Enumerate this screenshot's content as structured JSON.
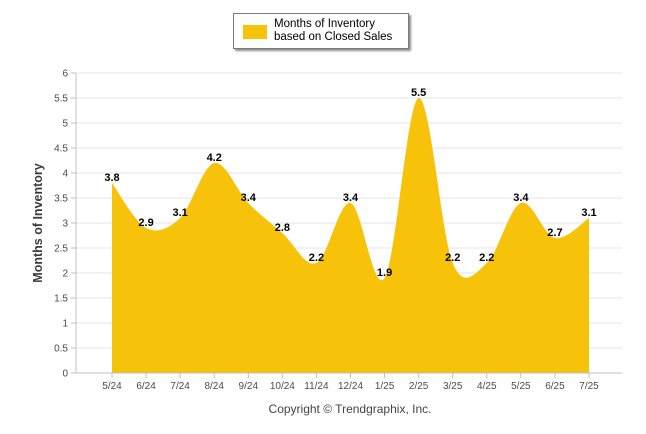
{
  "legend": {
    "label": "Months of Inventory based on Closed Sales"
  },
  "footer": {
    "copyright": "Copyright © Trendgraphix, Inc."
  },
  "colors": {
    "series_fill": "#F7C20A",
    "grid": "#e6e6e6",
    "axis_text": "#4a4a4a"
  },
  "chart_data": {
    "type": "area",
    "title": "",
    "xlabel": "",
    "ylabel": "Months of Inventory",
    "ylim": [
      0,
      6
    ],
    "yticks": [
      "0",
      "0.5",
      "1",
      "1.5",
      "2",
      "2.5",
      "3",
      "3.5",
      "4",
      "4.5",
      "5",
      "5.5",
      "6"
    ],
    "categories": [
      "5/24",
      "6/24",
      "7/24",
      "8/24",
      "9/24",
      "10/24",
      "11/24",
      "12/24",
      "1/25",
      "2/25",
      "3/25",
      "4/25",
      "5/25",
      "6/25",
      "7/25"
    ],
    "series": [
      {
        "name": "Months of Inventory based on Closed Sales",
        "values": [
          3.8,
          2.9,
          3.1,
          4.2,
          3.4,
          2.8,
          2.2,
          3.4,
          1.9,
          5.5,
          2.2,
          2.2,
          3.4,
          2.7,
          3.1
        ],
        "data_labels": [
          "3.8",
          "2.9",
          "3.1",
          "4.2",
          "3.4",
          "2.8",
          "2.2",
          "3.4",
          "1.9",
          "5.5",
          "2.2",
          "2.2",
          "3.4",
          "2.7",
          "3.1"
        ]
      }
    ],
    "grid": true,
    "legend_position": "top-center"
  }
}
